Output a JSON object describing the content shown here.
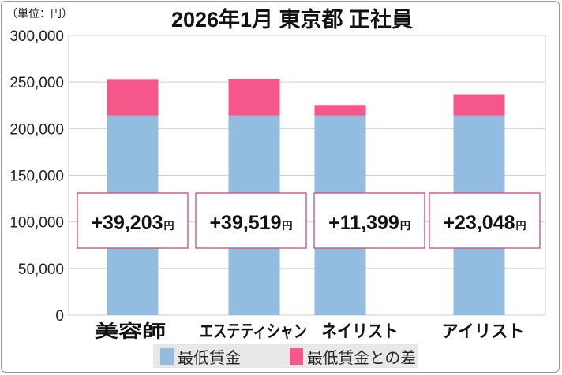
{
  "chart_data": {
    "type": "bar",
    "stacked": true,
    "title": "2026年1月 東京都 正社員",
    "unit_label": "（単位：円）",
    "categories": [
      "美容師",
      "エステティシャン",
      "ネイリスト",
      "アイリスト"
    ],
    "series": [
      {
        "name": "最低賃金",
        "color": "#92bde0",
        "values": [
          214000,
          214000,
          214000,
          214000
        ]
      },
      {
        "name": "最低賃金との差",
        "color": "#f5578a",
        "values": [
          39203,
          39519,
          11399,
          23048
        ]
      }
    ],
    "data_labels": [
      "+39,203",
      "+39,519",
      "+11,399",
      "+23,048"
    ],
    "data_label_unit": "円",
    "ylim": [
      0,
      300000
    ],
    "yticks": [
      "0",
      "50,000",
      "100,000",
      "150,000",
      "200,000",
      "250,000",
      "300,000"
    ],
    "grid": true,
    "legend_position": "bottom"
  }
}
